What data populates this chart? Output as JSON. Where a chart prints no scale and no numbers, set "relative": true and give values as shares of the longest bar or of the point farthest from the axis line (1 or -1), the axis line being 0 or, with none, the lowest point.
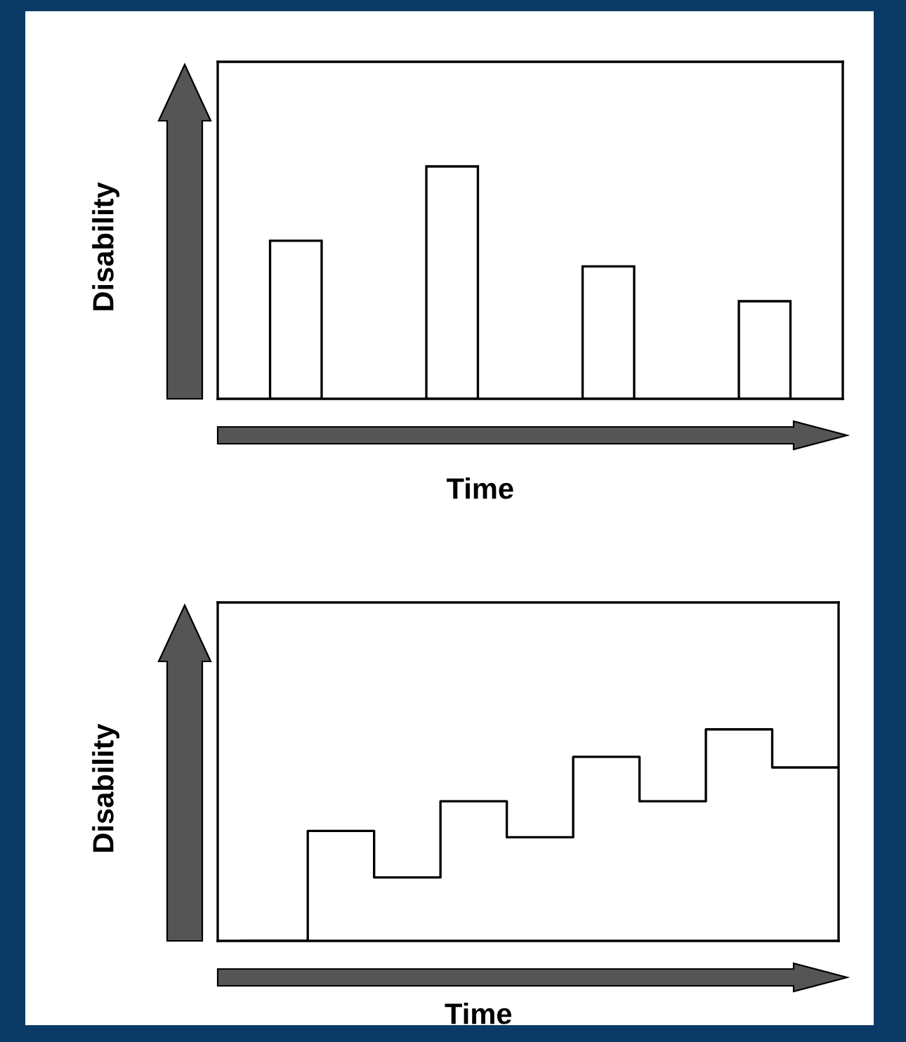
{
  "chart_data": [
    {
      "type": "bar",
      "xlabel": "Time",
      "ylabel": "Disability",
      "relative": true,
      "grid": false,
      "legend": false,
      "categories": [
        null,
        null,
        null,
        null
      ],
      "series": [
        {
          "color": "#ffffff",
          "values": [
            0.68,
            1.0,
            0.57,
            0.42
          ]
        }
      ]
    },
    {
      "type": "step",
      "xlabel": "Time",
      "ylabel": "Disability",
      "relative": true,
      "grid": false,
      "legend": false,
      "marker": "none",
      "line_style": "solid",
      "categories": [
        null,
        null,
        null,
        null,
        null,
        null,
        null,
        null,
        null,
        null
      ],
      "series": [
        {
          "color": "#000000",
          "values": [
            0,
            0.52,
            0.3,
            0.66,
            0.49,
            0.87,
            0.66,
            1.0,
            0.82,
            0.82
          ]
        }
      ]
    }
  ]
}
